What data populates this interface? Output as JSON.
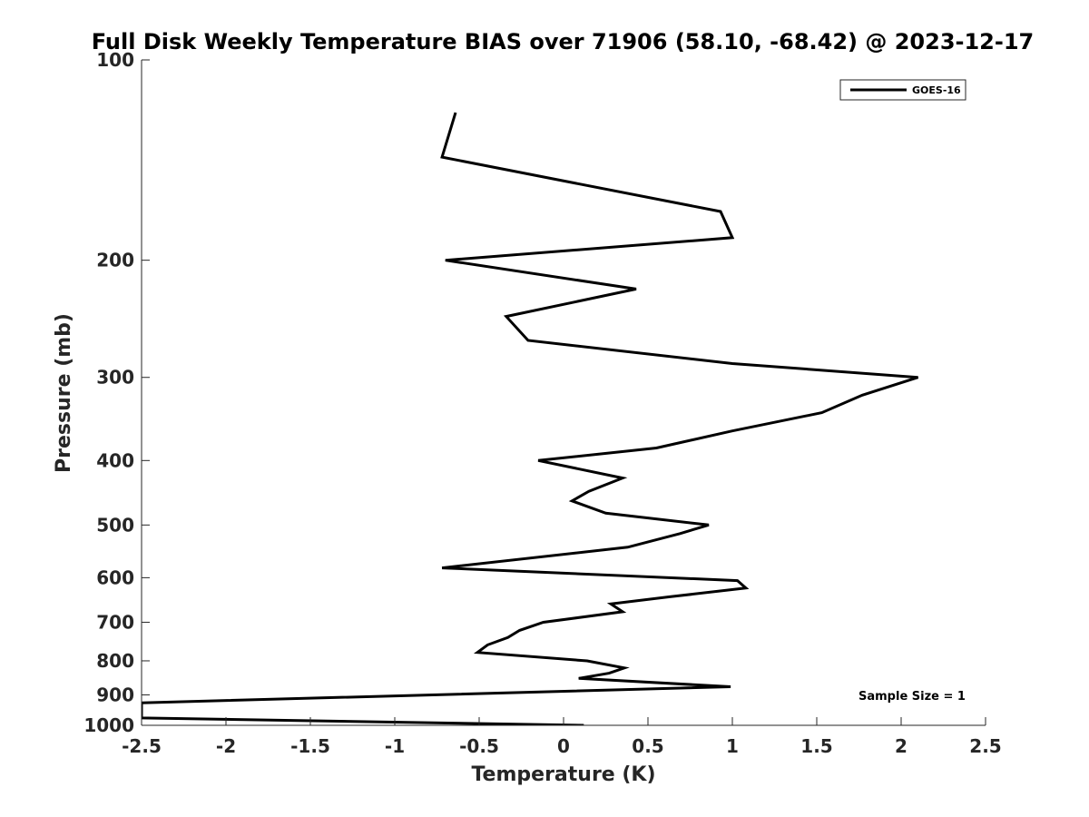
{
  "chart_data": {
    "type": "line",
    "title": "Full Disk Weekly Temperature BIAS over 71906 (58.10, -68.42) @ 2023-12-17",
    "xlabel": "Temperature (K)",
    "ylabel": "Pressure (mb)",
    "xlim": [
      -2.5,
      2.5
    ],
    "ylim": [
      100,
      1000
    ],
    "yscale": "log",
    "y_reversed": true,
    "xticks": [
      -2.5,
      -2,
      -1.5,
      -1,
      -0.5,
      0,
      0.5,
      1,
      1.5,
      2,
      2.5
    ],
    "xtick_labels": [
      "-2.5",
      "-2",
      "-1.5",
      "-1",
      "-0.5",
      "0",
      "0.5",
      "1",
      "1.5",
      "2",
      "2.5"
    ],
    "yticks": [
      100,
      200,
      300,
      400,
      500,
      600,
      700,
      800,
      900,
      1000
    ],
    "ytick_labels": [
      "100",
      "200",
      "300",
      "400",
      "500",
      "600",
      "700",
      "800",
      "900",
      "1000"
    ],
    "grid": false,
    "legend_position": "top-right",
    "annotation": "Sample Size = 1",
    "series": [
      {
        "name": "GOES-16",
        "color": "#000000",
        "points": [
          {
            "x": -0.64,
            "p": 120
          },
          {
            "x": -0.72,
            "p": 140
          },
          {
            "x": 0.93,
            "p": 169
          },
          {
            "x": 1.0,
            "p": 185
          },
          {
            "x": -0.7,
            "p": 200
          },
          {
            "x": 0.43,
            "p": 221
          },
          {
            "x": -0.34,
            "p": 243
          },
          {
            "x": -0.21,
            "p": 264
          },
          {
            "x": 1.0,
            "p": 286
          },
          {
            "x": 2.1,
            "p": 300
          },
          {
            "x": 1.77,
            "p": 319
          },
          {
            "x": 1.53,
            "p": 339
          },
          {
            "x": 1.0,
            "p": 361
          },
          {
            "x": 0.55,
            "p": 383
          },
          {
            "x": -0.15,
            "p": 400
          },
          {
            "x": 0.35,
            "p": 425
          },
          {
            "x": 0.15,
            "p": 445
          },
          {
            "x": 0.05,
            "p": 460
          },
          {
            "x": 0.25,
            "p": 480
          },
          {
            "x": 0.86,
            "p": 500
          },
          {
            "x": 0.69,
            "p": 515
          },
          {
            "x": 0.38,
            "p": 540
          },
          {
            "x": -0.72,
            "p": 580
          },
          {
            "x": 1.03,
            "p": 606
          },
          {
            "x": 1.08,
            "p": 622
          },
          {
            "x": 0.63,
            "p": 641
          },
          {
            "x": 0.28,
            "p": 657
          },
          {
            "x": 0.35,
            "p": 675
          },
          {
            "x": -0.12,
            "p": 700
          },
          {
            "x": -0.26,
            "p": 720
          },
          {
            "x": -0.33,
            "p": 738
          },
          {
            "x": -0.45,
            "p": 757
          },
          {
            "x": -0.51,
            "p": 777
          },
          {
            "x": 0.14,
            "p": 800
          },
          {
            "x": 0.36,
            "p": 820
          },
          {
            "x": 0.27,
            "p": 835
          },
          {
            "x": 0.09,
            "p": 850
          },
          {
            "x": 0.99,
            "p": 875
          },
          {
            "x": -2.5,
            "p": 925
          },
          {
            "x": -2.5,
            "p": 975
          },
          {
            "x": 0.12,
            "p": 1000
          }
        ]
      }
    ]
  }
}
